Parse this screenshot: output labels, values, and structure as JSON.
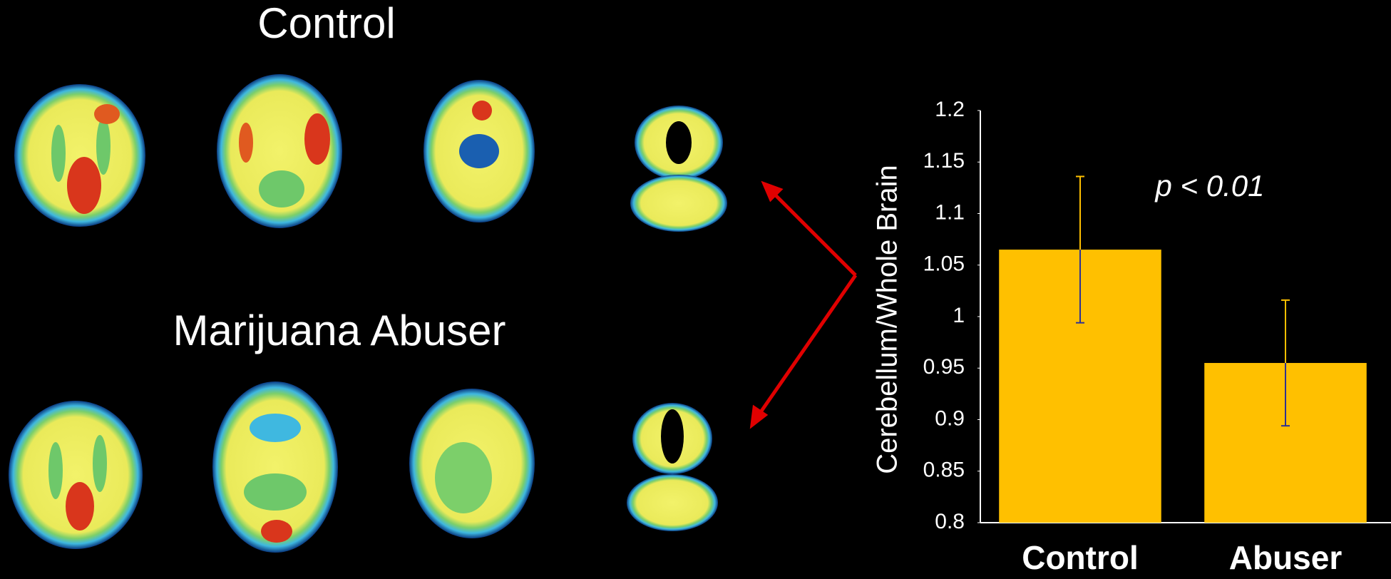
{
  "scans": {
    "control_label": "Control",
    "abuser_label": "Marijuana Abuser"
  },
  "chart_data": {
    "type": "bar",
    "ylabel": "Cerebellum/Whole Brain",
    "annotation": "p < 0.01",
    "categories": [
      "Control",
      "Abuser"
    ],
    "values": [
      1.065,
      0.955
    ],
    "errors": [
      0.071,
      0.061
    ],
    "color": "#ffc000",
    "error_colors": [
      "#ffc000",
      "#2e3192"
    ],
    "ylim": [
      0.8,
      1.2
    ],
    "yticks": [
      0.8,
      0.85,
      0.9,
      0.95,
      1,
      1.05,
      1.1,
      1.15,
      1.2
    ]
  }
}
